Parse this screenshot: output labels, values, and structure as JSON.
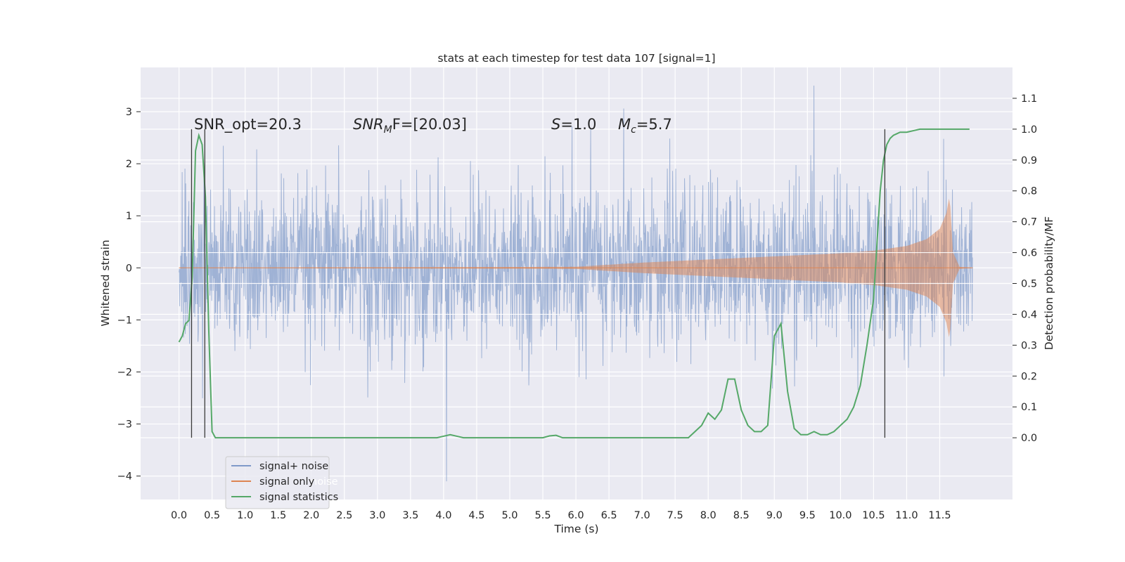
{
  "chart_data": {
    "type": "line",
    "title": "stats at each timestep for test data 107 [signal=1]",
    "xlabel": "Time (s)",
    "ylabel": "Whitened strain",
    "ylabel_right": "Detection probability/MF",
    "x_ticks": [
      "0.0",
      "0.5",
      "1.0",
      "1.5",
      "2.0",
      "2.5",
      "3.0",
      "3.5",
      "4.0",
      "4.5",
      "5.0",
      "5.5",
      "6.0",
      "6.5",
      "7.0",
      "7.5",
      "8.0",
      "8.5",
      "9.0",
      "9.5",
      "10.0",
      "10.5",
      "11.0",
      "11.5"
    ],
    "y_ticks_left": [
      "−4",
      "−3",
      "−2",
      "−1",
      "0",
      "1",
      "2",
      "3"
    ],
    "y_ticks_right": [
      "0.0",
      "0.1",
      "0.2",
      "0.3",
      "0.4",
      "0.5",
      "0.6",
      "0.7",
      "0.8",
      "0.9",
      "1.0",
      "1.1"
    ],
    "xlim": [
      -0.58,
      12.6
    ],
    "ylim_left": [
      -4.45,
      3.85
    ],
    "ylim_right": [
      -0.2,
      1.2
    ],
    "grid": true,
    "legend_position": "lower-left",
    "legend": [
      "signal+ noise",
      "signal only",
      "signal statistics"
    ],
    "legend_ghost_text": "noise",
    "annotations": {
      "snr_opt": "SNR_opt=20.3",
      "snr_mf_main": "SNR",
      "snr_mf_sub": "M",
      "snr_mf_rest": "F=[20.03]",
      "s_label": "S",
      "s_value": "=1.0",
      "mc_main": "M",
      "mc_sub": "c",
      "mc_value": "=5.7"
    },
    "series": [
      {
        "name": "signal+ noise",
        "color": "#7f9ac9",
        "axis": "left",
        "x_range": [
          0.0,
          12.0
        ],
        "noise_std": 0.75,
        "y_min": -4.1,
        "y_max": 3.5
      },
      {
        "name": "signal only",
        "color": "#dd8452",
        "axis": "left",
        "envelope": [
          {
            "x": 0.0,
            "y": 0.0
          },
          {
            "x": 6.0,
            "y": 0.02
          },
          {
            "x": 7.0,
            "y": 0.1
          },
          {
            "x": 8.0,
            "y": 0.16
          },
          {
            "x": 9.0,
            "y": 0.22
          },
          {
            "x": 10.0,
            "y": 0.28
          },
          {
            "x": 10.5,
            "y": 0.33
          },
          {
            "x": 11.0,
            "y": 0.42
          },
          {
            "x": 11.3,
            "y": 0.55
          },
          {
            "x": 11.5,
            "y": 0.75
          },
          {
            "x": 11.6,
            "y": 1.05
          },
          {
            "x": 11.65,
            "y": 1.4
          },
          {
            "x": 11.7,
            "y": 0.3
          },
          {
            "x": 11.8,
            "y": 0.02
          },
          {
            "x": 12.0,
            "y": 0.0
          }
        ]
      },
      {
        "name": "signal statistics",
        "color": "#55a868",
        "axis": "right",
        "x": [
          0.0,
          0.05,
          0.1,
          0.15,
          0.2,
          0.25,
          0.3,
          0.35,
          0.4,
          0.45,
          0.5,
          0.55,
          0.6,
          0.7,
          0.8,
          0.9,
          1.0,
          1.5,
          2.0,
          2.5,
          3.0,
          3.5,
          3.9,
          4.0,
          4.1,
          4.2,
          4.3,
          4.5,
          5.0,
          5.5,
          5.6,
          5.7,
          5.8,
          5.9,
          6.0,
          6.5,
          7.0,
          7.5,
          7.7,
          7.8,
          7.9,
          8.0,
          8.1,
          8.2,
          8.3,
          8.4,
          8.5,
          8.6,
          8.7,
          8.8,
          8.9,
          9.0,
          9.1,
          9.2,
          9.3,
          9.4,
          9.5,
          9.6,
          9.7,
          9.8,
          9.9,
          10.0,
          10.1,
          10.2,
          10.3,
          10.4,
          10.5,
          10.6,
          10.65,
          10.7,
          10.75,
          10.8,
          10.85,
          10.9,
          11.0,
          11.1,
          11.2,
          11.3,
          11.5,
          11.95
        ],
        "values": [
          0.31,
          0.33,
          0.37,
          0.38,
          0.52,
          0.93,
          0.98,
          0.95,
          0.78,
          0.35,
          0.02,
          0.0,
          0.0,
          0.0,
          0.0,
          0.0,
          0.0,
          0.0,
          0.0,
          0.0,
          0.0,
          0.0,
          0.0,
          0.005,
          0.01,
          0.005,
          0.0,
          0.0,
          0.0,
          0.0,
          0.006,
          0.008,
          0.0,
          0.0,
          0.0,
          0.0,
          0.0,
          0.0,
          0.0,
          0.02,
          0.04,
          0.08,
          0.06,
          0.09,
          0.19,
          0.19,
          0.09,
          0.04,
          0.02,
          0.02,
          0.04,
          0.33,
          0.37,
          0.15,
          0.03,
          0.01,
          0.01,
          0.02,
          0.01,
          0.01,
          0.02,
          0.04,
          0.06,
          0.1,
          0.17,
          0.3,
          0.45,
          0.8,
          0.9,
          0.95,
          0.97,
          0.98,
          0.985,
          0.99,
          0.99,
          0.995,
          1.0,
          1.0,
          1.0,
          1.0
        ]
      }
    ],
    "vertical_markers": [
      0.19,
      0.39,
      10.67
    ],
    "vertical_marker_color": "#3a3a3a"
  }
}
